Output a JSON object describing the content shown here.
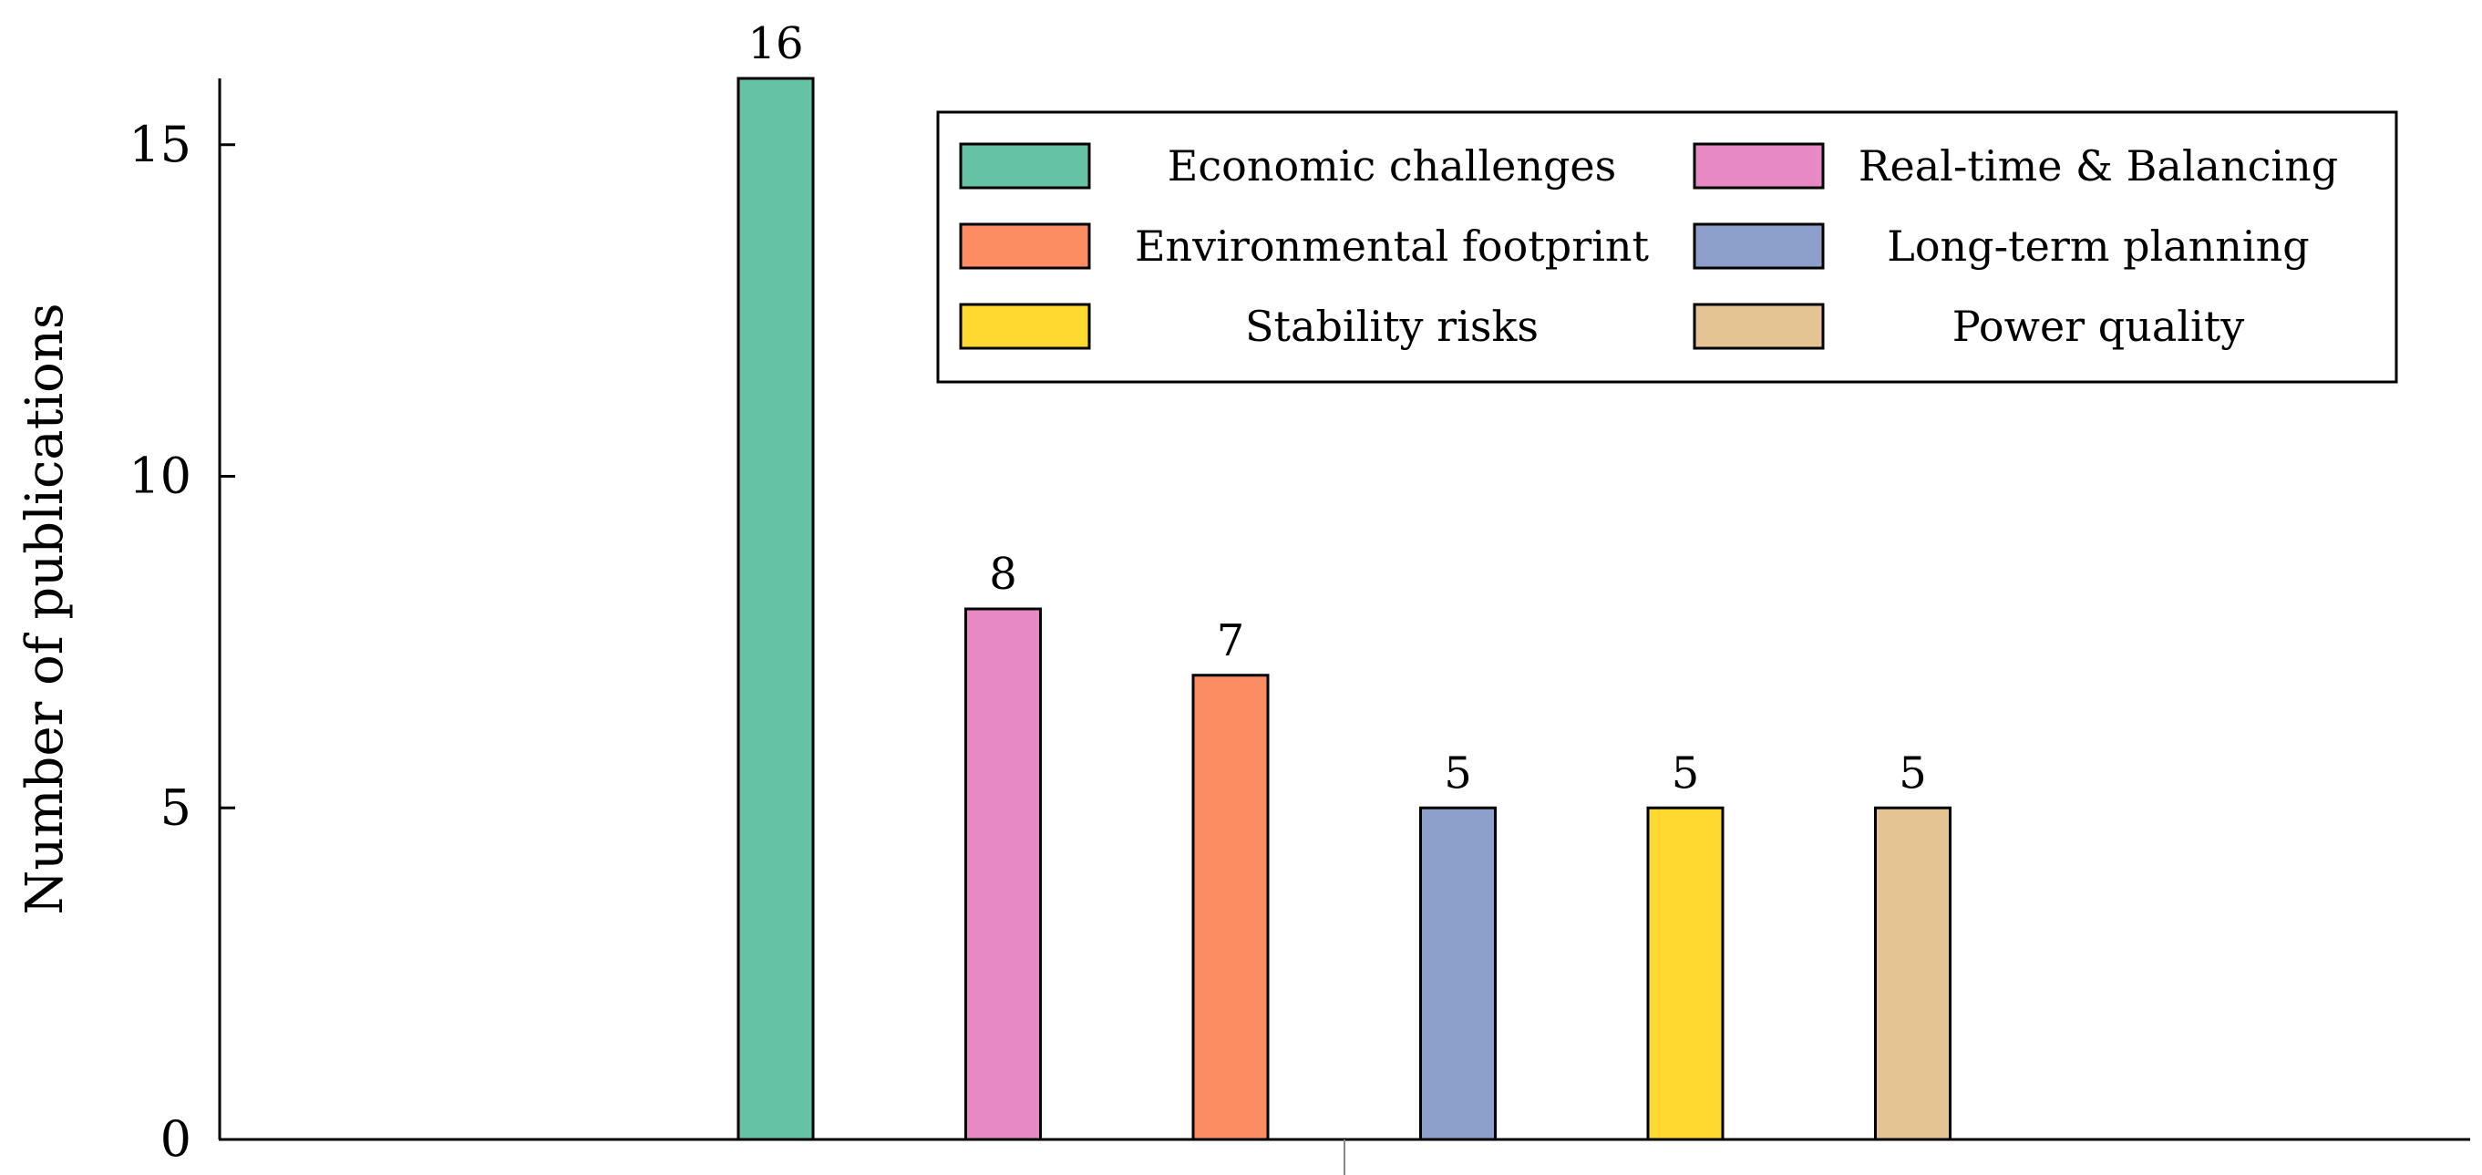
{
  "chart_data": {
    "type": "bar",
    "title": "",
    "xlabel": "",
    "ylabel": "Number of publications",
    "ylim": [
      0,
      16
    ],
    "yticks": [
      0,
      5,
      10,
      15
    ],
    "grid": false,
    "legend_position": "top-right",
    "series": [
      {
        "name": "Economic challenges",
        "value": 16,
        "color": "#66c2a5"
      },
      {
        "name": "Real-time & Balancing",
        "value": 8,
        "color": "#e78ac3"
      },
      {
        "name": "Environmental footprint",
        "value": 7,
        "color": "#fc8d62"
      },
      {
        "name": "Long-term planning",
        "value": 5,
        "color": "#8da0cb"
      },
      {
        "name": "Stability risks",
        "value": 5,
        "color": "#ffd92f"
      },
      {
        "name": "Power quality",
        "value": 5,
        "color": "#e5c494"
      }
    ]
  }
}
